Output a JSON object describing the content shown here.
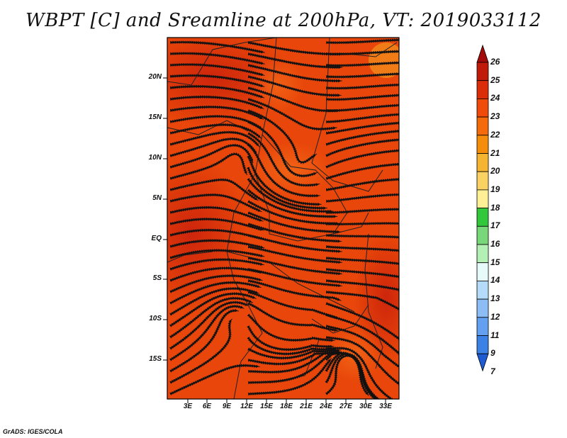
{
  "title": "WBPT [C] and Sreamline at 200hPa, VT: 2019033112",
  "credit": "GrADS: IGES/COLA",
  "map": {
    "lat_ticks": [
      "20N",
      "15N",
      "10N",
      "5N",
      "EQ",
      "5S",
      "10S",
      "15S"
    ],
    "lon_ticks": [
      "3E",
      "6E",
      "9E",
      "12E",
      "15E",
      "18E",
      "21E",
      "24E",
      "27E",
      "30E",
      "33E"
    ],
    "field_color": "#e8460a",
    "hot_color": "#c8200c"
  },
  "colorbar": {
    "labels": [
      "26",
      "25",
      "24",
      "23",
      "22",
      "21",
      "20",
      "19",
      "18",
      "17",
      "16",
      "15",
      "14",
      "13",
      "12",
      "11",
      "9",
      "7"
    ],
    "colors": [
      "#a50a0a",
      "#c01a0a",
      "#dc2d0a",
      "#f04b0a",
      "#f56a0a",
      "#f58c0a",
      "#f5b432",
      "#fad264",
      "#fff096",
      "#32c83c",
      "#78d778",
      "#b4f0b4",
      "#e6fafa",
      "#b4dcfa",
      "#8cbef5",
      "#64a0f0",
      "#3c82e6",
      "#1e5ad2"
    ]
  }
}
